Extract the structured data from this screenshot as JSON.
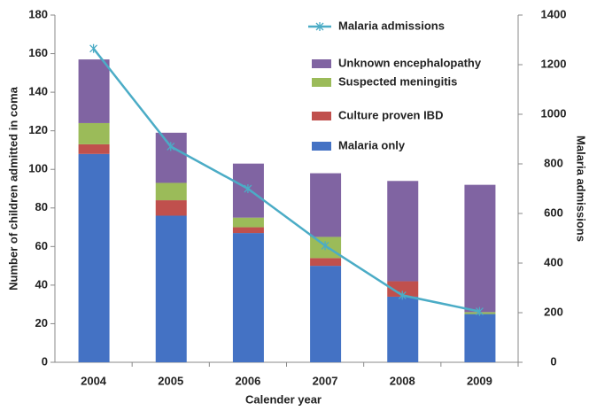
{
  "chart_data": {
    "type": "bar",
    "stacked": true,
    "categories": [
      "2004",
      "2005",
      "2006",
      "2007",
      "2008",
      "2009"
    ],
    "series": [
      {
        "name": "Malaria only",
        "color": "#4472c4",
        "values": [
          108,
          76,
          67,
          50,
          34,
          25
        ]
      },
      {
        "name": "Culture proven IBD",
        "color": "#c0504d",
        "values": [
          5,
          8,
          3,
          4,
          8,
          0
        ]
      },
      {
        "name": "Suspected meningitis",
        "color": "#9bbb59",
        "values": [
          11,
          9,
          5,
          11,
          0,
          1
        ]
      },
      {
        "name": "Unknown encephalopathy",
        "color": "#8064a2",
        "values": [
          33,
          26,
          28,
          33,
          52,
          66
        ]
      },
      {
        "name": "Malaria admissions",
        "color": "#4bacc6",
        "type": "line",
        "axis": "y2",
        "values": [
          1265,
          870,
          700,
          470,
          270,
          205
        ]
      }
    ],
    "xlabel": "Calender year",
    "ylabel": "Number of children admitted in coma",
    "y2label": "Malaria admissions",
    "ylim": [
      0,
      180
    ],
    "yticks": [
      0,
      20,
      40,
      60,
      80,
      100,
      120,
      140,
      160,
      180
    ],
    "y2lim": [
      0,
      1400
    ],
    "y2ticks": [
      0,
      200,
      400,
      600,
      800,
      1000,
      1200,
      1400
    ],
    "grid": false,
    "legend": "upper right"
  }
}
